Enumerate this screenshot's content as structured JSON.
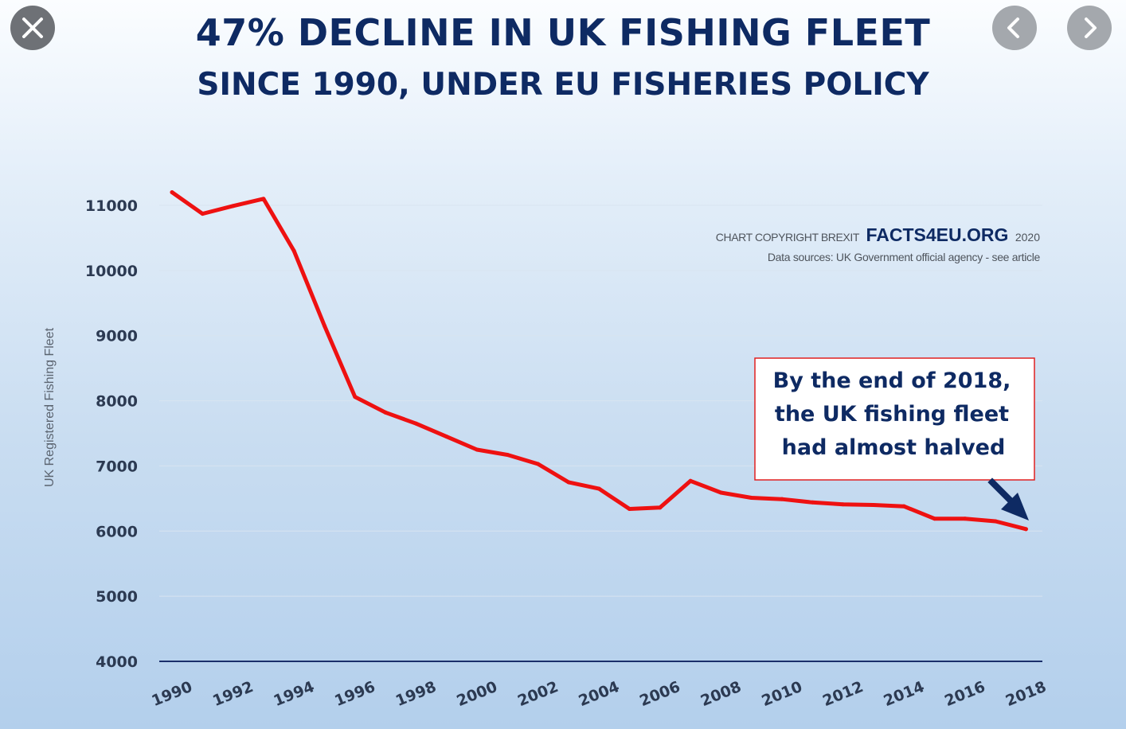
{
  "viewer": {
    "close_icon": "close-icon",
    "prev_icon": "chevron-left-icon",
    "next_icon": "chevron-right-icon"
  },
  "header": {
    "title": "47% DECLINE IN UK FISHING FLEET",
    "subtitle": "SINCE 1990, UNDER EU FISHERIES POLICY"
  },
  "credits": {
    "copyright_prefix": "CHART COPYRIGHT BREXIT",
    "brand": "FACTS4EU.ORG",
    "year": "2020",
    "sources": "Data sources: UK Government official agency - see article"
  },
  "callout": {
    "line1": "By the end of 2018,",
    "line2": "the UK fishing fleet",
    "line3": "had almost halved"
  },
  "colors": {
    "line": "#ee1111",
    "title": "#0e2a63",
    "axis": "#1a2f6b",
    "callout_border": "#e02020",
    "arrow": "#0e2a63"
  },
  "chart_data": {
    "type": "line",
    "title": "47% DECLINE IN UK FISHING FLEET",
    "subtitle": "SINCE 1990, UNDER EU FISHERIES POLICY",
    "xlabel": "",
    "ylabel": "UK Registered Fishing Fleet",
    "ylim": [
      4000,
      11000
    ],
    "yticks": [
      4000,
      5000,
      6000,
      7000,
      8000,
      9000,
      10000,
      11000
    ],
    "xticks": [
      1990,
      1992,
      1994,
      1996,
      1998,
      2000,
      2002,
      2004,
      2006,
      2008,
      2010,
      2012,
      2014,
      2016,
      2018
    ],
    "grid": true,
    "series": [
      {
        "name": "UK Registered Fishing Fleet",
        "x": [
          1990,
          1991,
          1992,
          1993,
          1994,
          1995,
          1996,
          1997,
          1998,
          1999,
          2000,
          2001,
          2002,
          2003,
          2004,
          2005,
          2006,
          2007,
          2008,
          2009,
          2010,
          2011,
          2012,
          2013,
          2014,
          2015,
          2016,
          2017,
          2018
        ],
        "values": [
          11200,
          10870,
          10990,
          11100,
          10300,
          9150,
          8060,
          7820,
          7650,
          7450,
          7250,
          7170,
          7030,
          6750,
          6650,
          6340,
          6360,
          6770,
          6590,
          6510,
          6490,
          6440,
          6410,
          6400,
          6380,
          6190,
          6190,
          6150,
          6030
        ]
      }
    ]
  }
}
